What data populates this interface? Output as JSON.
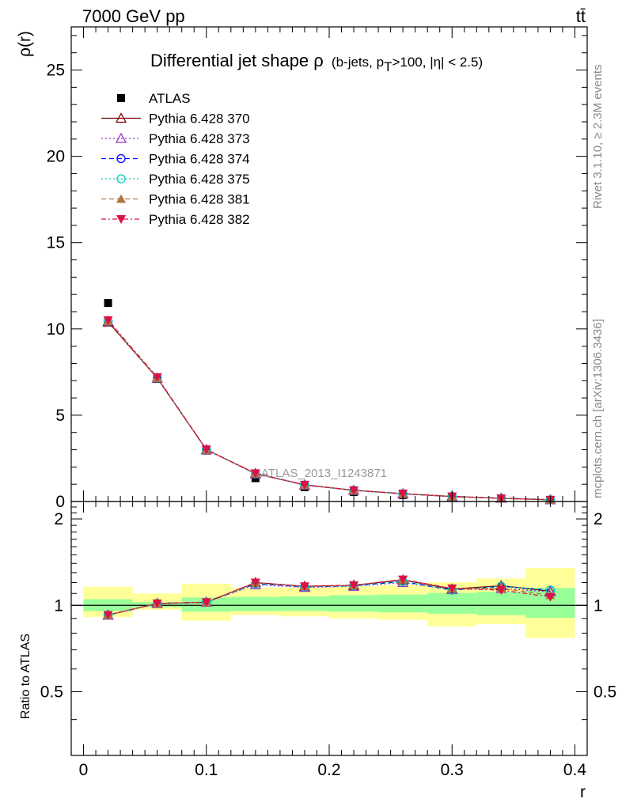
{
  "header": {
    "left": "7000 GeV pp",
    "right": "tt̄"
  },
  "side_labels": {
    "rivet": "Rivet 3.1.10, ≥ 2.3M events",
    "mcplots": "mcplots.cern.ch [arXiv:1306.3436]"
  },
  "chart_data": [
    {
      "type": "line",
      "panel": "main",
      "title": "Differential jet shape ρ",
      "title_detail": "(b-jets, pT>100, |η| < 2.5)",
      "title_detail_parts": [
        "(b-jets, p",
        "T",
        ">100, |η| < 2.5)"
      ],
      "ylabel": "ρ(r)",
      "xlabel": "r",
      "xlim": [
        -0.01,
        0.41
      ],
      "ylim": [
        0,
        27.5
      ],
      "grid": false,
      "legend_position": "top-left",
      "annotation": "ATLAS_2013_I1243871",
      "x": [
        0.02,
        0.06,
        0.1,
        0.14,
        0.18,
        0.22,
        0.26,
        0.3,
        0.34,
        0.38
      ],
      "x_ticks": [
        "0",
        "0.1",
        "0.2",
        "0.3",
        "0.4"
      ],
      "y_ticks": [
        "0",
        "5",
        "10",
        "15",
        "20",
        "25"
      ],
      "series": [
        {
          "name": "ATLAS",
          "color": "#000000",
          "marker": "square",
          "line": "none",
          "values": [
            11.5,
            7.1,
            2.95,
            1.35,
            0.83,
            0.55,
            0.37,
            0.25,
            0.16,
            0.09
          ]
        },
        {
          "name": "Pythia 6.428 370",
          "color": "#800000",
          "marker": "triangle-open",
          "line": "solid",
          "values": [
            10.4,
            7.15,
            3.0,
            1.63,
            0.96,
            0.65,
            0.45,
            0.29,
            0.19,
            0.1
          ]
        },
        {
          "name": "Pythia 6.428 373",
          "color": "#9932cc",
          "marker": "triangle-open",
          "line": "dotted",
          "values": [
            10.45,
            7.15,
            3.0,
            1.6,
            0.95,
            0.64,
            0.45,
            0.29,
            0.19,
            0.1
          ]
        },
        {
          "name": "Pythia 6.428 374",
          "color": "#0000ff",
          "marker": "circle-open",
          "line": "dashed",
          "values": [
            10.45,
            7.15,
            3.0,
            1.61,
            0.96,
            0.65,
            0.45,
            0.29,
            0.19,
            0.1
          ]
        },
        {
          "name": "Pythia 6.428 375",
          "color": "#00ccbb",
          "marker": "circle-open",
          "line": "dotted",
          "values": [
            10.45,
            7.15,
            3.0,
            1.61,
            0.96,
            0.65,
            0.45,
            0.29,
            0.19,
            0.1
          ]
        },
        {
          "name": "Pythia 6.428 381",
          "color": "#b07840",
          "marker": "triangle",
          "line": "dashed",
          "values": [
            10.45,
            7.15,
            3.0,
            1.62,
            0.96,
            0.65,
            0.45,
            0.29,
            0.18,
            0.1
          ]
        },
        {
          "name": "Pythia 6.428 382",
          "color": "#dd1144",
          "marker": "triangle-down",
          "line": "dashdot",
          "values": [
            10.5,
            7.2,
            3.02,
            1.63,
            0.97,
            0.65,
            0.46,
            0.29,
            0.18,
            0.1
          ]
        }
      ]
    },
    {
      "type": "line",
      "panel": "ratio",
      "ylabel": "Ratio to ATLAS",
      "xlabel": "r",
      "xlim": [
        -0.01,
        0.41
      ],
      "ylim": [
        0.3,
        2.3
      ],
      "reference_line": 1,
      "y_ticks": [
        "0.5",
        "1",
        "2"
      ],
      "x": [
        0.02,
        0.06,
        0.1,
        0.14,
        0.18,
        0.22,
        0.26,
        0.3,
        0.34,
        0.38
      ],
      "bin_edges": [
        0.0,
        0.04,
        0.08,
        0.12,
        0.16,
        0.2,
        0.24,
        0.28,
        0.32,
        0.36,
        0.4
      ],
      "band_stat": {
        "color": "#99ff99",
        "low": [
          0.955,
          0.985,
          0.95,
          0.955,
          0.955,
          0.95,
          0.945,
          0.935,
          0.925,
          0.905
        ],
        "high": [
          1.05,
          1.025,
          1.065,
          1.07,
          1.075,
          1.085,
          1.09,
          1.105,
          1.115,
          1.15
        ]
      },
      "band_total": {
        "color": "#ffff99",
        "low": [
          0.91,
          0.965,
          0.885,
          0.925,
          0.915,
          0.9,
          0.89,
          0.845,
          0.86,
          0.77
        ]
      },
      "band_total_high": [
        1.16,
        1.1,
        1.19,
        1.15,
        1.155,
        1.165,
        1.175,
        1.205,
        1.24,
        1.35
      ],
      "series": [
        {
          "name": "Pythia 6.428 370",
          "values": [
            0.925,
            1.015,
            1.025,
            1.2,
            1.165,
            1.175,
            1.225,
            1.14,
            1.17,
            1.12
          ]
        },
        {
          "name": "Pythia 6.428 373",
          "values": [
            0.925,
            1.015,
            1.025,
            1.18,
            1.155,
            1.165,
            1.2,
            1.135,
            1.145,
            1.115
          ]
        },
        {
          "name": "Pythia 6.428 374",
          "values": [
            0.925,
            1.015,
            1.025,
            1.19,
            1.16,
            1.17,
            1.21,
            1.13,
            1.165,
            1.13
          ]
        },
        {
          "name": "Pythia 6.428 375",
          "values": [
            0.925,
            1.015,
            1.025,
            1.19,
            1.16,
            1.17,
            1.21,
            1.13,
            1.165,
            1.13
          ]
        },
        {
          "name": "Pythia 6.428 381",
          "values": [
            0.925,
            1.015,
            1.025,
            1.2,
            1.165,
            1.175,
            1.23,
            1.145,
            1.145,
            1.085
          ]
        },
        {
          "name": "Pythia 6.428 382",
          "values": [
            0.925,
            1.015,
            1.025,
            1.2,
            1.165,
            1.175,
            1.23,
            1.145,
            1.13,
            1.07
          ]
        }
      ]
    }
  ]
}
